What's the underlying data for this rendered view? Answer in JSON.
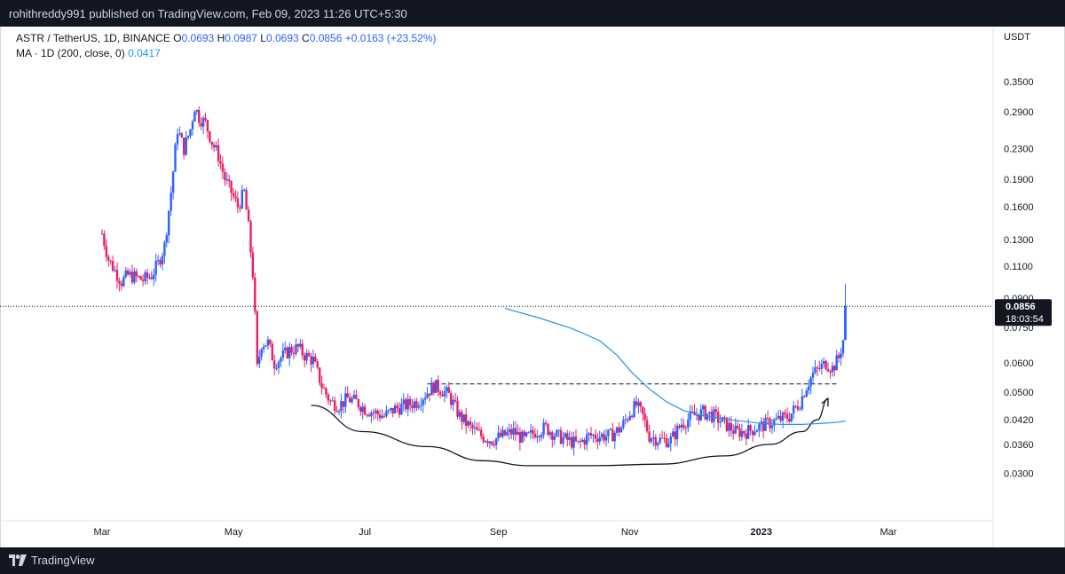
{
  "header": {
    "published": "rohithreddy991 published on TradingView.com, Feb 09, 2023 11:26 UTC+5:30"
  },
  "legend": {
    "symbol": "ASTR / TetherUS, 1D, BINANCE",
    "o_label": "O",
    "o_value": "0.0693",
    "h_label": "H",
    "h_value": "0.0987",
    "l_label": "L",
    "l_value": "0.0693",
    "c_label": "C",
    "c_value": "0.0856",
    "change": "+0.0163 (+23.52%)",
    "ma_label": "MA · 1D (200, close, 0)",
    "ma_value": "0.0417"
  },
  "footer": {
    "brand": "TradingView",
    "logo_icon": "tradingview-logo-icon"
  },
  "colors": {
    "up": "#2962ff",
    "down": "#e91e63",
    "ma": "#2196f3",
    "price_tag": "#131722"
  },
  "chart_data": {
    "type": "candlestick",
    "axis_unit": "USDT",
    "y_scale": "log",
    "ylim": [
      0.0265,
      0.385
    ],
    "y_ticks": [
      "0.3500",
      "0.2900",
      "0.2300",
      "0.1900",
      "0.1600",
      "0.1300",
      "0.1100",
      "0.0900",
      "0.0750",
      "0.0600",
      "0.0500",
      "0.0420",
      "0.0360",
      "0.0300"
    ],
    "x_ticks": [
      "Mar",
      "May",
      "Jul",
      "Sep",
      "Nov",
      "2023",
      "Mar"
    ],
    "last_price": "0.0856",
    "countdown": "18:03:54",
    "price_series": [
      [
        "2022-03-01",
        0.135
      ],
      [
        "2022-03-04",
        0.115
      ],
      [
        "2022-03-07",
        0.107
      ],
      [
        "2022-03-10",
        0.1
      ],
      [
        "2022-03-13",
        0.104
      ],
      [
        "2022-03-16",
        0.103
      ],
      [
        "2022-03-20",
        0.101
      ],
      [
        "2022-03-24",
        0.104
      ],
      [
        "2022-03-27",
        0.112
      ],
      [
        "2022-03-30",
        0.125
      ],
      [
        "2022-04-02",
        0.175
      ],
      [
        "2022-04-05",
        0.26
      ],
      [
        "2022-04-08",
        0.23
      ],
      [
        "2022-04-11",
        0.26
      ],
      [
        "2022-04-13",
        0.3
      ],
      [
        "2022-04-15",
        0.28
      ],
      [
        "2022-04-18",
        0.27
      ],
      [
        "2022-04-21",
        0.24
      ],
      [
        "2022-04-24",
        0.22
      ],
      [
        "2022-04-27",
        0.19
      ],
      [
        "2022-04-30",
        0.175
      ],
      [
        "2022-05-03",
        0.16
      ],
      [
        "2022-05-06",
        0.175
      ],
      [
        "2022-05-08",
        0.14
      ],
      [
        "2022-05-10",
        0.105
      ],
      [
        "2022-05-11",
        0.08
      ],
      [
        "2022-05-12",
        0.058
      ],
      [
        "2022-05-14",
        0.068
      ],
      [
        "2022-05-17",
        0.068
      ],
      [
        "2022-05-20",
        0.06
      ],
      [
        "2022-05-23",
        0.062
      ],
      [
        "2022-05-27",
        0.065
      ],
      [
        "2022-05-31",
        0.066
      ],
      [
        "2022-06-03",
        0.063
      ],
      [
        "2022-06-07",
        0.061
      ],
      [
        "2022-06-11",
        0.052
      ],
      [
        "2022-06-15",
        0.047
      ],
      [
        "2022-06-19",
        0.046
      ],
      [
        "2022-06-23",
        0.048
      ],
      [
        "2022-06-27",
        0.047
      ],
      [
        "2022-07-01",
        0.045
      ],
      [
        "2022-07-05",
        0.044
      ],
      [
        "2022-07-10",
        0.043
      ],
      [
        "2022-07-15",
        0.045
      ],
      [
        "2022-07-20",
        0.046
      ],
      [
        "2022-07-25",
        0.047
      ],
      [
        "2022-07-30",
        0.05
      ],
      [
        "2022-08-02",
        0.052
      ],
      [
        "2022-08-05",
        0.051
      ],
      [
        "2022-08-09",
        0.049
      ],
      [
        "2022-08-14",
        0.043
      ],
      [
        "2022-08-19",
        0.04
      ],
      [
        "2022-08-24",
        0.038
      ],
      [
        "2022-08-29",
        0.037
      ],
      [
        "2022-09-03",
        0.038
      ],
      [
        "2022-09-08",
        0.039
      ],
      [
        "2022-09-13",
        0.037
      ],
      [
        "2022-09-18",
        0.039
      ],
      [
        "2022-09-23",
        0.04
      ],
      [
        "2022-09-28",
        0.038
      ],
      [
        "2022-10-03",
        0.037
      ],
      [
        "2022-10-08",
        0.036
      ],
      [
        "2022-10-13",
        0.038
      ],
      [
        "2022-10-18",
        0.038
      ],
      [
        "2022-10-23",
        0.038
      ],
      [
        "2022-10-28",
        0.04
      ],
      [
        "2022-11-01",
        0.044
      ],
      [
        "2022-11-04",
        0.046
      ],
      [
        "2022-11-07",
        0.043
      ],
      [
        "2022-11-10",
        0.038
      ],
      [
        "2022-11-15",
        0.037
      ],
      [
        "2022-11-20",
        0.037
      ],
      [
        "2022-11-25",
        0.041
      ],
      [
        "2022-11-30",
        0.043
      ],
      [
        "2022-12-05",
        0.044
      ],
      [
        "2022-12-10",
        0.043
      ],
      [
        "2022-12-15",
        0.041
      ],
      [
        "2022-12-20",
        0.039
      ],
      [
        "2022-12-25",
        0.039
      ],
      [
        "2022-12-30",
        0.04
      ],
      [
        "2023-01-04",
        0.041
      ],
      [
        "2023-01-09",
        0.042
      ],
      [
        "2023-01-14",
        0.043
      ],
      [
        "2023-01-19",
        0.047
      ],
      [
        "2023-01-22",
        0.052
      ],
      [
        "2023-01-25",
        0.056
      ],
      [
        "2023-01-28",
        0.058
      ],
      [
        "2023-01-31",
        0.06
      ],
      [
        "2023-02-03",
        0.058
      ],
      [
        "2023-02-06",
        0.062
      ],
      [
        "2023-02-08",
        0.0693
      ],
      [
        "2023-02-09",
        0.0856
      ]
    ],
    "last_candle": {
      "date": "2023-02-09",
      "open": 0.0693,
      "high": 0.0987,
      "low": 0.0693,
      "close": 0.0856
    },
    "ma_200": [
      [
        "2022-09-04",
        0.0845
      ],
      [
        "2022-09-20",
        0.0795
      ],
      [
        "2022-10-05",
        0.0745
      ],
      [
        "2022-10-18",
        0.069
      ],
      [
        "2022-10-26",
        0.063
      ],
      [
        "2022-11-02",
        0.0565
      ],
      [
        "2022-11-10",
        0.051
      ],
      [
        "2022-11-18",
        0.047
      ],
      [
        "2022-11-26",
        0.0445
      ],
      [
        "2022-12-06",
        0.043
      ],
      [
        "2022-12-18",
        0.042
      ],
      [
        "2022-12-30",
        0.0412
      ],
      [
        "2023-01-10",
        0.0408
      ],
      [
        "2023-01-20",
        0.0408
      ],
      [
        "2023-01-30",
        0.0411
      ],
      [
        "2023-02-06",
        0.0414
      ],
      [
        "2023-02-09",
        0.0417
      ]
    ],
    "annotations": {
      "resistance_line": {
        "from": "2022-07-30",
        "to": "2023-02-06",
        "price": 0.0526,
        "style": "dashed"
      },
      "cup_curve": [
        [
          "2022-06-06",
          0.046
        ],
        [
          "2022-06-30",
          0.039
        ],
        [
          "2022-07-30",
          0.0355
        ],
        [
          "2022-08-25",
          0.0325
        ],
        [
          "2022-09-15",
          0.0315
        ],
        [
          "2022-10-15",
          0.0315
        ],
        [
          "2022-11-15",
          0.0318
        ],
        [
          "2022-12-15",
          0.0335
        ],
        [
          "2023-01-05",
          0.036
        ],
        [
          "2023-01-20",
          0.039
        ],
        [
          "2023-01-27",
          0.042
        ],
        [
          "2023-02-01",
          0.048
        ]
      ]
    }
  }
}
